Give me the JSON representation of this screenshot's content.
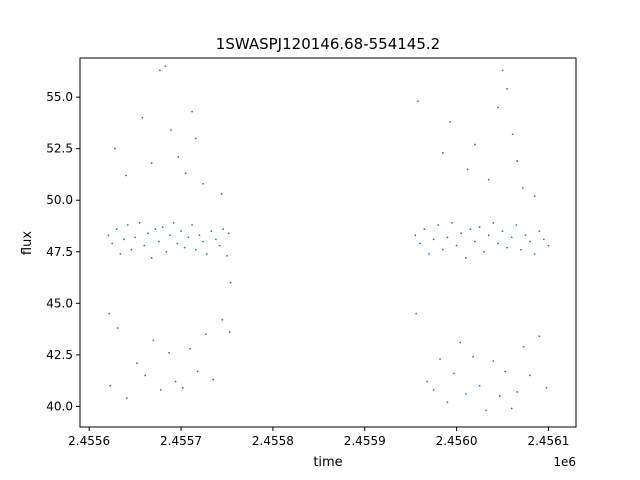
{
  "chart_data": {
    "type": "scatter",
    "title": "1SWASPJ120146.68-554145.2",
    "xlabel": "time",
    "ylabel": "flux",
    "x_offset_label": "1e6",
    "xlim": [
      2455590,
      2456130
    ],
    "ylim": [
      39.0,
      56.9
    ],
    "x_ticks": [
      2455600,
      2455700,
      2455800,
      2455900,
      2456000,
      2456100
    ],
    "x_tick_labels": [
      "2.4556",
      "2.4557",
      "2.4558",
      "2.4559",
      "2.4560",
      "2.4561"
    ],
    "y_ticks": [
      40.0,
      42.5,
      45.0,
      47.5,
      50.0,
      52.5,
      55.0
    ],
    "y_tick_labels": [
      "40.0",
      "42.5",
      "45.0",
      "47.5",
      "50.0",
      "52.5",
      "55.0"
    ],
    "grid": false,
    "marker_color": "#1f77b4",
    "series": [
      {
        "name": "",
        "points": [
          [
            2455621,
            48.3
          ],
          [
            2455625,
            47.9
          ],
          [
            2455630,
            48.6
          ],
          [
            2455634,
            47.4
          ],
          [
            2455638,
            48.1
          ],
          [
            2455642,
            48.8
          ],
          [
            2455646,
            47.6
          ],
          [
            2455650,
            48.2
          ],
          [
            2455655,
            48.9
          ],
          [
            2455660,
            47.8
          ],
          [
            2455664,
            48.4
          ],
          [
            2455668,
            47.2
          ],
          [
            2455672,
            48.6
          ],
          [
            2455676,
            48.0
          ],
          [
            2455680,
            48.7
          ],
          [
            2455684,
            47.5
          ],
          [
            2455688,
            48.3
          ],
          [
            2455692,
            48.9
          ],
          [
            2455696,
            47.9
          ],
          [
            2455700,
            48.5
          ],
          [
            2455704,
            47.7
          ],
          [
            2455708,
            48.2
          ],
          [
            2455712,
            48.8
          ],
          [
            2455716,
            47.6
          ],
          [
            2455720,
            48.3
          ],
          [
            2455724,
            48.0
          ],
          [
            2455728,
            47.4
          ],
          [
            2455733,
            48.5
          ],
          [
            2455738,
            48.1
          ],
          [
            2455742,
            47.8
          ],
          [
            2455746,
            48.6
          ],
          [
            2455750,
            47.3
          ],
          [
            2455752,
            48.4
          ],
          [
            2455754,
            46.0
          ],
          [
            2455622,
            44.5
          ],
          [
            2455623,
            41.0
          ],
          [
            2455631,
            43.8
          ],
          [
            2455641,
            40.4
          ],
          [
            2455652,
            42.1
          ],
          [
            2455661,
            41.5
          ],
          [
            2455670,
            43.2
          ],
          [
            2455678,
            40.8
          ],
          [
            2455687,
            42.6
          ],
          [
            2455694,
            41.2
          ],
          [
            2455702,
            40.9
          ],
          [
            2455710,
            42.8
          ],
          [
            2455718,
            41.7
          ],
          [
            2455727,
            43.5
          ],
          [
            2455735,
            41.3
          ],
          [
            2455745,
            44.2
          ],
          [
            2455753,
            43.6
          ],
          [
            2455628,
            52.5
          ],
          [
            2455640,
            51.2
          ],
          [
            2455658,
            54.0
          ],
          [
            2455668,
            51.8
          ],
          [
            2455677,
            56.3
          ],
          [
            2455683,
            56.5
          ],
          [
            2455689,
            53.4
          ],
          [
            2455697,
            52.1
          ],
          [
            2455705,
            51.3
          ],
          [
            2455712,
            54.3
          ],
          [
            2455716,
            53.0
          ],
          [
            2455724,
            50.8
          ],
          [
            2455744,
            50.3
          ],
          [
            2455955,
            48.3
          ],
          [
            2455960,
            47.9
          ],
          [
            2455965,
            48.6
          ],
          [
            2455970,
            47.4
          ],
          [
            2455975,
            48.1
          ],
          [
            2455980,
            48.8
          ],
          [
            2455985,
            47.6
          ],
          [
            2455990,
            48.2
          ],
          [
            2455995,
            48.9
          ],
          [
            2456000,
            47.8
          ],
          [
            2456005,
            48.4
          ],
          [
            2456010,
            47.2
          ],
          [
            2456015,
            48.6
          ],
          [
            2456020,
            48.0
          ],
          [
            2456025,
            48.7
          ],
          [
            2456030,
            47.5
          ],
          [
            2456035,
            48.3
          ],
          [
            2456040,
            48.9
          ],
          [
            2456045,
            47.9
          ],
          [
            2456050,
            48.5
          ],
          [
            2456055,
            47.7
          ],
          [
            2456060,
            48.2
          ],
          [
            2456065,
            48.8
          ],
          [
            2456070,
            47.6
          ],
          [
            2456075,
            48.3
          ],
          [
            2456080,
            48.0
          ],
          [
            2456085,
            47.4
          ],
          [
            2456090,
            48.5
          ],
          [
            2456095,
            48.1
          ],
          [
            2456100,
            47.8
          ],
          [
            2455956,
            44.5
          ],
          [
            2455968,
            41.2
          ],
          [
            2455975,
            40.8
          ],
          [
            2455982,
            42.3
          ],
          [
            2455990,
            40.2
          ],
          [
            2455997,
            41.6
          ],
          [
            2456004,
            43.1
          ],
          [
            2456010,
            40.6
          ],
          [
            2456018,
            42.4
          ],
          [
            2456025,
            41.0
          ],
          [
            2456032,
            39.8
          ],
          [
            2456040,
            42.2
          ],
          [
            2456047,
            40.5
          ],
          [
            2456053,
            41.7
          ],
          [
            2456060,
            39.9
          ],
          [
            2456066,
            40.7
          ],
          [
            2456073,
            42.9
          ],
          [
            2456080,
            41.5
          ],
          [
            2456090,
            43.4
          ],
          [
            2456098,
            40.9
          ],
          [
            2455958,
            54.8
          ],
          [
            2455985,
            52.3
          ],
          [
            2455993,
            53.8
          ],
          [
            2456012,
            51.5
          ],
          [
            2456020,
            52.7
          ],
          [
            2456035,
            51.0
          ],
          [
            2456045,
            54.5
          ],
          [
            2456050,
            56.3
          ],
          [
            2456055,
            55.4
          ],
          [
            2456061,
            53.2
          ],
          [
            2456066,
            51.9
          ],
          [
            2456072,
            50.6
          ],
          [
            2456085,
            50.2
          ]
        ]
      }
    ]
  }
}
